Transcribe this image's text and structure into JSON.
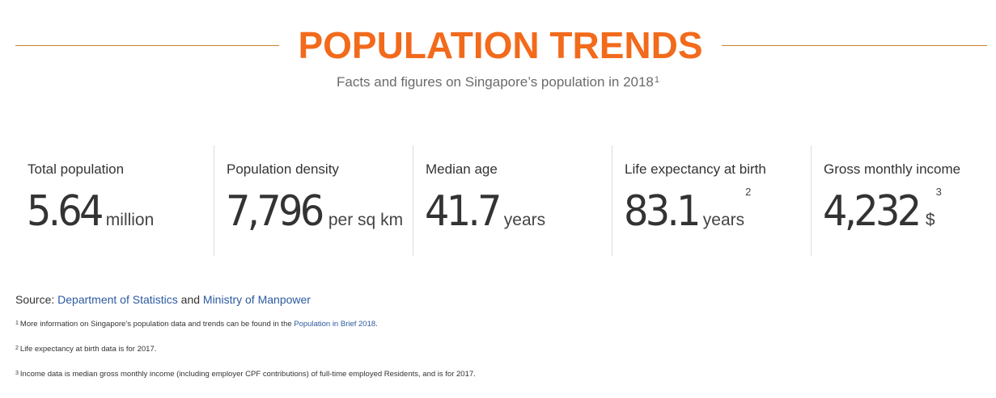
{
  "header": {
    "title": "POPULATION TRENDS",
    "subtitle": "Facts and figures on Singapore’s population in 2018",
    "subtitle_footnote": "1"
  },
  "stats": [
    {
      "label": "Total population",
      "value": "5.64",
      "unit": "million",
      "footnote": ""
    },
    {
      "label": "Population density",
      "value": "7,796",
      "unit": "per sq km",
      "footnote": ""
    },
    {
      "label": "Median age",
      "value": "41.7",
      "unit": "years",
      "footnote": ""
    },
    {
      "label": "Life expectancy at birth",
      "value": "83.1",
      "unit": "years",
      "footnote": "2"
    },
    {
      "label": "Gross monthly income",
      "value": "4,232",
      "unit": "$",
      "footnote": "3"
    }
  ],
  "source": {
    "prefix": "Source:",
    "link1": "Department of Statistics",
    "conjunction": "and",
    "link2": "Ministry of Manpower"
  },
  "notes": {
    "n1": {
      "marker": "1",
      "text": "More information on Singapore’s population data and trends can be found in the",
      "link": "Population in Brief 2018",
      "suffix": "."
    },
    "n2": {
      "marker": "2",
      "text": "Life expectancy at birth data is for 2017."
    },
    "n3": {
      "marker": "3",
      "text": "Income data is median gross monthly income (including employer CPF contributions) of full-time employed Residents, and is for 2017."
    }
  },
  "colors": {
    "title": "#f26a1b",
    "rule": "#c9872a",
    "link": "#2c5aa0",
    "divider": "#dcdcdc"
  }
}
